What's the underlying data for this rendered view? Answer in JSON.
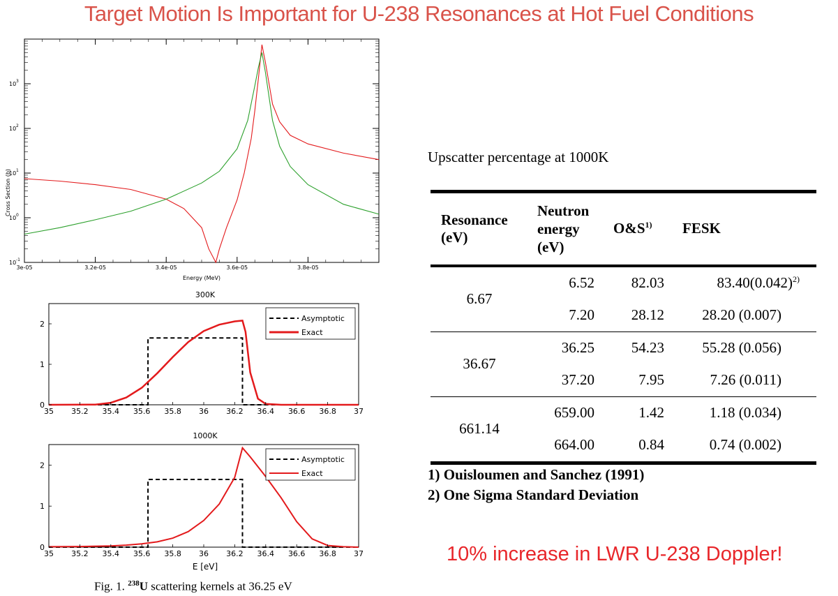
{
  "slide": {
    "title": "Target Motion Is Important for U-238 Resonances at Hot Fuel Conditions",
    "callout": "10% increase in LWR U-238 Doppler!",
    "caption_prefix": "Fig. 1. ",
    "caption_sup": "238",
    "caption_u": "U",
    "caption_rest": " scattering kernels at 36.25 eV"
  },
  "chart_data": [
    {
      "type": "line",
      "xlabel": "Energy (MeV)",
      "ylabel": "Cross Section (b)",
      "xlim": [
        3e-05,
        4e-05
      ],
      "ylim": [
        0.1,
        10000
      ],
      "yscale": "log",
      "x_tick_labels": [
        "3e-05",
        "3.2e-05",
        "3.4e-05",
        "3.6e-05",
        "3.8e-05"
      ],
      "y_tick_labels": [
        {
          "base": "10",
          "exp": "-1"
        },
        {
          "base": "10",
          "exp": "0"
        },
        {
          "base": "10",
          "exp": "1"
        },
        {
          "base": "10",
          "exp": "2"
        },
        {
          "base": "10",
          "exp": "3"
        }
      ],
      "series": [
        {
          "color": "#e31a1c",
          "x": [
            3e-05,
            3.1e-05,
            3.2e-05,
            3.3e-05,
            3.4e-05,
            3.45e-05,
            3.5e-05,
            3.52e-05,
            3.54e-05,
            3.55e-05,
            3.57e-05,
            3.6e-05,
            3.62e-05,
            3.64e-05,
            3.65e-05,
            3.66e-05,
            3.67e-05,
            3.68e-05,
            3.7e-05,
            3.72e-05,
            3.75e-05,
            3.8e-05,
            3.9e-05,
            4e-05
          ],
          "y": [
            7.5,
            6.6,
            5.5,
            4.3,
            2.6,
            1.6,
            0.6,
            0.2,
            0.08,
            0.2,
            0.6,
            2.5,
            10,
            60,
            250,
            1300,
            7500,
            3000,
            350,
            140,
            70,
            45,
            28,
            20
          ]
        },
        {
          "color": "#2ca02c",
          "x": [
            3e-05,
            3.1e-05,
            3.2e-05,
            3.3e-05,
            3.4e-05,
            3.5e-05,
            3.55e-05,
            3.6e-05,
            3.63e-05,
            3.65e-05,
            3.66e-05,
            3.67e-05,
            3.68e-05,
            3.7e-05,
            3.72e-05,
            3.75e-05,
            3.8e-05,
            3.9e-05,
            4e-05
          ],
          "y": [
            0.43,
            0.6,
            0.9,
            1.4,
            2.6,
            6,
            11,
            35,
            150,
            900,
            2300,
            5000,
            1800,
            150,
            40,
            14,
            5.5,
            2,
            1.2
          ]
        }
      ]
    },
    {
      "type": "line",
      "title": "300K",
      "xlim": [
        35,
        37
      ],
      "ylim": [
        0,
        2.5
      ],
      "x_tick_labels": [
        "35",
        "35.2",
        "35.4",
        "35.6",
        "35.8",
        "36",
        "36.2",
        "36.4",
        "36.6",
        "36.8",
        "37"
      ],
      "y_tick_labels": [
        "0",
        "1",
        "2"
      ],
      "legend": "top-right",
      "series": [
        {
          "name": "Asymptotic",
          "style": "dashed",
          "color": "#000000",
          "x": [
            35,
            35.64,
            35.64,
            36.25,
            36.25,
            37
          ],
          "y": [
            0,
            0,
            1.65,
            1.65,
            0,
            0
          ]
        },
        {
          "name": "Exact",
          "style": "solid",
          "color": "#e31a1c",
          "x": [
            35,
            35.3,
            35.4,
            35.5,
            35.6,
            35.7,
            35.8,
            35.9,
            36.0,
            36.1,
            36.2,
            36.25,
            36.27,
            36.3,
            36.35,
            36.4,
            36.5,
            37
          ],
          "y": [
            0,
            0.005,
            0.05,
            0.18,
            0.42,
            0.78,
            1.18,
            1.55,
            1.82,
            1.98,
            2.06,
            2.08,
            1.8,
            0.8,
            0.15,
            0.02,
            0,
            0
          ]
        }
      ]
    },
    {
      "type": "line",
      "title": "1000K",
      "xlabel": "E [eV]",
      "xlim": [
        35,
        37
      ],
      "ylim": [
        0,
        2.5
      ],
      "x_tick_labels": [
        "35",
        "35.2",
        "35.4",
        "35.6",
        "35.8",
        "36",
        "36.2",
        "36.4",
        "36.6",
        "36.8",
        "37"
      ],
      "y_tick_labels": [
        "0",
        "1",
        "2"
      ],
      "legend": "top-right",
      "series": [
        {
          "name": "Asymptotic",
          "style": "dashed",
          "color": "#000000",
          "x": [
            35,
            35.64,
            35.64,
            36.25,
            36.25,
            37
          ],
          "y": [
            0,
            0,
            1.65,
            1.65,
            0,
            0
          ]
        },
        {
          "name": "Exact",
          "style": "solid",
          "color": "#e31a1c",
          "x": [
            35,
            35.2,
            35.4,
            35.5,
            35.6,
            35.7,
            35.8,
            35.9,
            36.0,
            36.1,
            36.2,
            36.25,
            36.3,
            36.4,
            36.5,
            36.6,
            36.7,
            36.8,
            36.9,
            37
          ],
          "y": [
            0.01,
            0.015,
            0.03,
            0.05,
            0.08,
            0.13,
            0.22,
            0.38,
            0.65,
            1.05,
            1.7,
            2.42,
            2.2,
            1.72,
            1.2,
            0.62,
            0.2,
            0.04,
            0.01,
            0
          ]
        }
      ]
    },
    {
      "type": "table",
      "title": "Upscatter percentage at 1000K",
      "headers": {
        "resonance": [
          "Resonance",
          "(eV)"
        ],
        "neutron": [
          "Neutron",
          "energy",
          "(eV)"
        ],
        "os": "O&S",
        "os_sup": "1)",
        "fesk": "FESK"
      },
      "groups": [
        {
          "resonance": "6.67",
          "rows": [
            {
              "energy": "6.52",
              "os": "82.03",
              "fesk": "83.40(0.042)",
              "fesk_sup": "2)"
            },
            {
              "energy": "7.20",
              "os": "28.12",
              "fesk": "28.20 (0.007)"
            }
          ]
        },
        {
          "resonance": "36.67",
          "rows": [
            {
              "energy": "36.25",
              "os": "54.23",
              "fesk": "55.28 (0.056)"
            },
            {
              "energy": "37.20",
              "os": "7.95",
              "fesk": "7.26 (0.011)"
            }
          ]
        },
        {
          "resonance": "661.14",
          "rows": [
            {
              "energy": "659.00",
              "os": "1.42",
              "fesk": "1.18 (0.034)"
            },
            {
              "energy": "664.00",
              "os": "0.84",
              "fesk": "0.74 (0.002)"
            }
          ]
        }
      ],
      "footnotes": [
        "1) Ouisloumen and Sanchez (1991)",
        "2) One Sigma Standard Deviation"
      ]
    }
  ]
}
